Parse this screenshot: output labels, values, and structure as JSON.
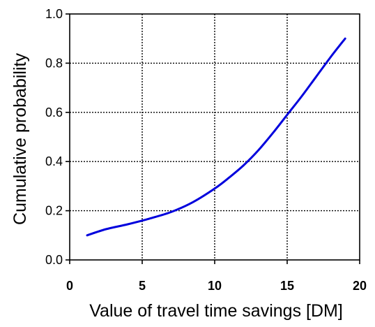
{
  "chart_data": {
    "type": "line",
    "title": "",
    "xlabel": "Value of travel time savings [DM]",
    "ylabel": "Cumulative probability",
    "xlim": [
      0,
      20
    ],
    "ylim": [
      0.0,
      1.0
    ],
    "xticks": [
      "0",
      "5",
      "10",
      "15",
      "20"
    ],
    "yticks": [
      "0.0",
      "0.2",
      "0.4",
      "0.6",
      "0.8",
      "1.0"
    ],
    "grid": true,
    "legend": "none",
    "series": [
      {
        "color": "#0000dd",
        "x": [
          1.2,
          2.5,
          4.0,
          5.5,
          7.0,
          8.5,
          10.0,
          11.0,
          12.0,
          13.0,
          14.0,
          15.0,
          16.0,
          17.0,
          18.0,
          19.0
        ],
        "y": [
          0.1,
          0.125,
          0.145,
          0.168,
          0.195,
          0.235,
          0.29,
          0.335,
          0.385,
          0.445,
          0.515,
          0.59,
          0.665,
          0.745,
          0.825,
          0.9
        ]
      }
    ]
  }
}
